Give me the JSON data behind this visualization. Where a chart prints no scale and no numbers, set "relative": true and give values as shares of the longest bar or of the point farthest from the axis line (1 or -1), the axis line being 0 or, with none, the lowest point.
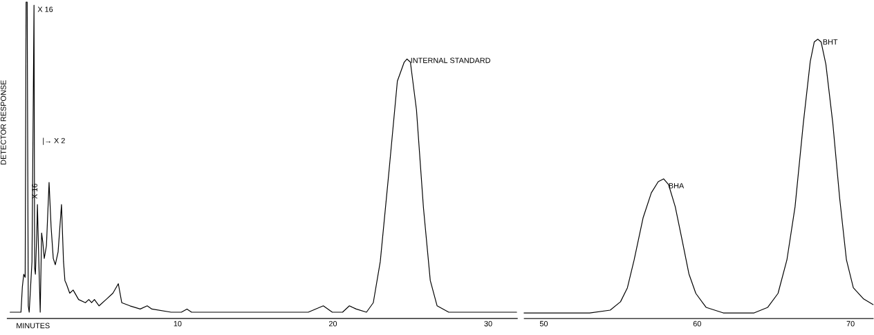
{
  "chart_data": [
    {
      "type": "line",
      "relative": true,
      "xlabel": "MINUTES",
      "ylabel": "DETECTOR RESPONSE",
      "color": "#000000",
      "xlim": [
        -1.0,
        31.9
      ],
      "xticks": [
        10,
        20,
        30
      ],
      "x": [
        -0.79,
        -0.09,
        0,
        0.09,
        0.18,
        0.24,
        0.31,
        0.38,
        0.44,
        0.53,
        0.62,
        0.75,
        0.79,
        0.84,
        0.93,
        0.97,
        1.06,
        1.15,
        1.24,
        1.32,
        1.41,
        1.55,
        1.72,
        1.85,
        1.99,
        2.12,
        2.3,
        2.52,
        2.65,
        2.74,
        2.83,
        3.05,
        3.27,
        3.62,
        4.06,
        4.28,
        4.46,
        4.64,
        4.94,
        5.39,
        5.83,
        6.18,
        6.4,
        6.93,
        7.59,
        8.04,
        8.34,
        9.58,
        10.24,
        10.6,
        10.9,
        11.79,
        14.44,
        16.2,
        18.41,
        19.38,
        19.96,
        20.62,
        21.06,
        21.5,
        22.16,
        22.6,
        23.05,
        23.62,
        24.15,
        24.59,
        24.77,
        24.99,
        25.38,
        25.83,
        26.27,
        26.71,
        27.46,
        29.89,
        31.83
      ],
      "values": [
        0.02,
        0.02,
        0.1,
        0.14,
        0.13,
        1.0,
        1.0,
        0.04,
        0.02,
        0.1,
        0.18,
        0.99,
        0.16,
        0.14,
        0.27,
        0.36,
        0.18,
        0.02,
        0.27,
        0.24,
        0.19,
        0.23,
        0.43,
        0.29,
        0.19,
        0.17,
        0.21,
        0.36,
        0.18,
        0.12,
        0.11,
        0.08,
        0.09,
        0.06,
        0.05,
        0.06,
        0.05,
        0.06,
        0.04,
        0.06,
        0.08,
        0.11,
        0.05,
        0.04,
        0.03,
        0.04,
        0.03,
        0.02,
        0.02,
        0.03,
        0.02,
        0.02,
        0.02,
        0.02,
        0.02,
        0.04,
        0.02,
        0.02,
        0.04,
        0.03,
        0.02,
        0.05,
        0.18,
        0.47,
        0.75,
        0.81,
        0.82,
        0.81,
        0.66,
        0.35,
        0.12,
        0.04,
        0.02,
        0.02,
        0.02
      ],
      "annotations": [
        {
          "text": "X 16",
          "x": 0.75,
          "y": 0.99
        },
        {
          "text": "X 16",
          "x": 0.97,
          "y": 0.36
        },
        "|→ X 2",
        {
          "text": "INTERNAL STANDARD",
          "x": 24.77,
          "y": 0.82
        }
      ]
    },
    {
      "type": "line",
      "relative": true,
      "color": "#000000",
      "xlim": [
        48.7,
        71.5
      ],
      "xticks": [
        50,
        60,
        70
      ],
      "x": [
        48.71,
        50.76,
        52.99,
        54.33,
        55.0,
        55.45,
        55.89,
        56.47,
        57.01,
        57.46,
        57.81,
        58.13,
        58.57,
        59.02,
        59.46,
        59.91,
        60.58,
        61.7,
        63.71,
        64.6,
        65.27,
        65.85,
        66.38,
        66.92,
        67.37,
        67.63,
        67.86,
        68.08,
        68.39,
        68.84,
        69.29,
        69.73,
        70.18,
        70.85,
        71.47
      ],
      "values": [
        0.02,
        0.02,
        0.02,
        0.03,
        0.06,
        0.11,
        0.21,
        0.36,
        0.45,
        0.49,
        0.5,
        0.48,
        0.4,
        0.28,
        0.16,
        0.09,
        0.04,
        0.02,
        0.02,
        0.04,
        0.09,
        0.21,
        0.4,
        0.7,
        0.92,
        0.99,
        1.0,
        0.99,
        0.91,
        0.7,
        0.43,
        0.21,
        0.11,
        0.07,
        0.05
      ],
      "annotations": [
        {
          "text": "BHA",
          "x": 57.81,
          "y": 0.5
        },
        {
          "text": "BHT",
          "x": 67.86,
          "y": 1.0
        }
      ]
    }
  ]
}
